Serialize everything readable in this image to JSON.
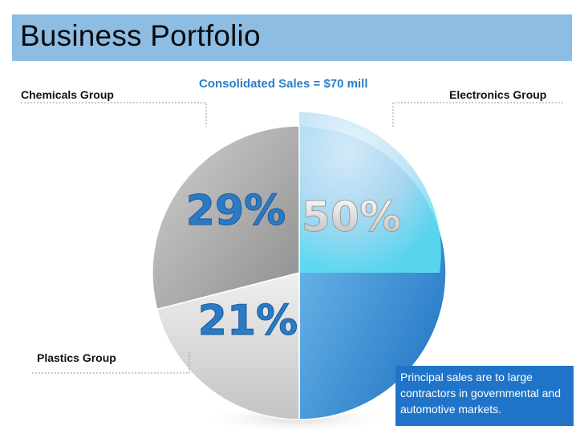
{
  "slide": {
    "title": "Business Portfolio",
    "subtitle": "Consolidated Sales = $70 mill",
    "note": "Principal sales are to large contractors in governmental and automotive markets."
  },
  "chart_data": {
    "type": "pie",
    "title": "Consolidated Sales = $70 mill",
    "slices": [
      {
        "label": "Electronics Group",
        "value": 50,
        "display": "50%",
        "color": "#2a8ad6"
      },
      {
        "label": "Plastics Group",
        "value": 21,
        "display": "21%",
        "color": "#cfcfcf"
      },
      {
        "label": "Chemicals Group",
        "value": 29,
        "display": "29%",
        "color": "#a9a9a9"
      }
    ],
    "start": "12 o'clock",
    "direction": "clockwise"
  },
  "colors": {
    "title_bar": "#8dbde3",
    "accent": "#2a7fc8",
    "note_background": "#1f74c8"
  }
}
